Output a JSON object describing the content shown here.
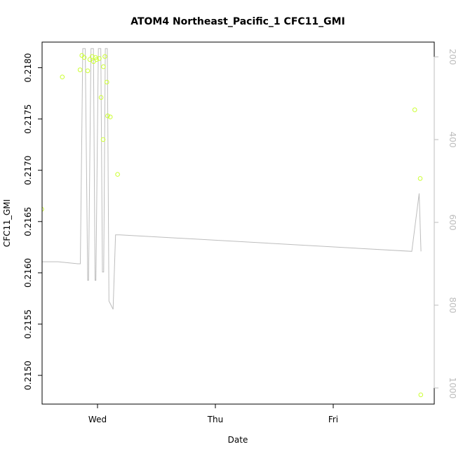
{
  "chart_data": {
    "type": "scatter",
    "title": "ATOM4 Northeast_Pacific_1 CFC11_GMI",
    "xlabel": "Date",
    "ylabel": "CFC11_GMI",
    "x_ticks": [
      "Wed",
      "Thu",
      "Fri"
    ],
    "y_ticks": [
      "0.2150",
      "0.2155",
      "0.2160",
      "0.2165",
      "0.2170",
      "0.2175",
      "0.2180"
    ],
    "y2_ticks": [
      "200",
      "400",
      "600",
      "800",
      "1000"
    ],
    "ylim": [
      0.21472,
      0.21825
    ],
    "y2lim": [
      1015,
      180
    ],
    "y2_reversed": true,
    "grid": false,
    "colors": {
      "points": "#ccff33",
      "line": "#bdbdbd",
      "axis": "#000000",
      "axis_right": "#bdbdbd"
    },
    "series": [
      {
        "type": "scatter",
        "axis": "left",
        "points": [
          {
            "x": "Tue 12:39",
            "y": 0.21662
          },
          {
            "x": "Tue 16:50",
            "y": 0.21791
          },
          {
            "x": "Tue 20:27",
            "y": 0.21798
          },
          {
            "x": "Tue 20:49",
            "y": 0.21812
          },
          {
            "x": "Tue 21:18",
            "y": 0.2181
          },
          {
            "x": "Tue 22:00",
            "y": 0.21797
          },
          {
            "x": "Tue 22:26",
            "y": 0.21808
          },
          {
            "x": "Tue 22:55",
            "y": 0.21811
          },
          {
            "x": "Tue 23:12",
            "y": 0.21806
          },
          {
            "x": "Tue 23:36",
            "y": 0.2181
          },
          {
            "x": "Tue 23:48",
            "y": 0.21808
          },
          {
            "x": "Wed 00:21",
            "y": 0.21809
          },
          {
            "x": "Wed 00:44",
            "y": 0.21771
          },
          {
            "x": "Wed 01:09",
            "y": 0.2173
          },
          {
            "x": "Wed 01:12",
            "y": 0.21801
          },
          {
            "x": "Wed 01:30",
            "y": 0.21811
          },
          {
            "x": "Wed 01:54",
            "y": 0.21786
          },
          {
            "x": "Wed 02:04",
            "y": 0.21753
          },
          {
            "x": "Wed 02:36",
            "y": 0.21752
          },
          {
            "x": "Wed 04:05",
            "y": 0.21696
          },
          {
            "x": "Fri 16:36",
            "y": 0.21759
          },
          {
            "x": "Fri 17:43",
            "y": 0.21692
          },
          {
            "x": "Fri 17:50",
            "y": 0.21481
          }
        ]
      },
      {
        "type": "line",
        "axis": "right",
        "points": [
          {
            "x": "Tue 12:00",
            "y": 695
          },
          {
            "x": "Tue 16:00",
            "y": 695
          },
          {
            "x": "Tue 20:00",
            "y": 700
          },
          {
            "x": "Tue 20:30",
            "y": 700
          },
          {
            "x": "Tue 21:00",
            "y": 180
          },
          {
            "x": "Tue 21:30",
            "y": 180
          },
          {
            "x": "Tue 22:00",
            "y": 740
          },
          {
            "x": "Tue 22:10",
            "y": 740
          },
          {
            "x": "Tue 22:40",
            "y": 180
          },
          {
            "x": "Tue 23:10",
            "y": 180
          },
          {
            "x": "Tue 23:30",
            "y": 740
          },
          {
            "x": "Tue 23:40",
            "y": 740
          },
          {
            "x": "Wed 00:10",
            "y": 180
          },
          {
            "x": "Wed 00:40",
            "y": 180
          },
          {
            "x": "Wed 01:00",
            "y": 720
          },
          {
            "x": "Wed 01:15",
            "y": 720
          },
          {
            "x": "Wed 01:35",
            "y": 180
          },
          {
            "x": "Wed 02:00",
            "y": 180
          },
          {
            "x": "Wed 02:20",
            "y": 790
          },
          {
            "x": "Wed 03:10",
            "y": 810
          },
          {
            "x": "Wed 03:40",
            "y": 630
          },
          {
            "x": "Wed 04:30",
            "y": 630
          },
          {
            "x": "Fri 16:00",
            "y": 670
          },
          {
            "x": "Fri 17:30",
            "y": 530
          },
          {
            "x": "Fri 17:52",
            "y": 670
          }
        ]
      }
    ]
  }
}
